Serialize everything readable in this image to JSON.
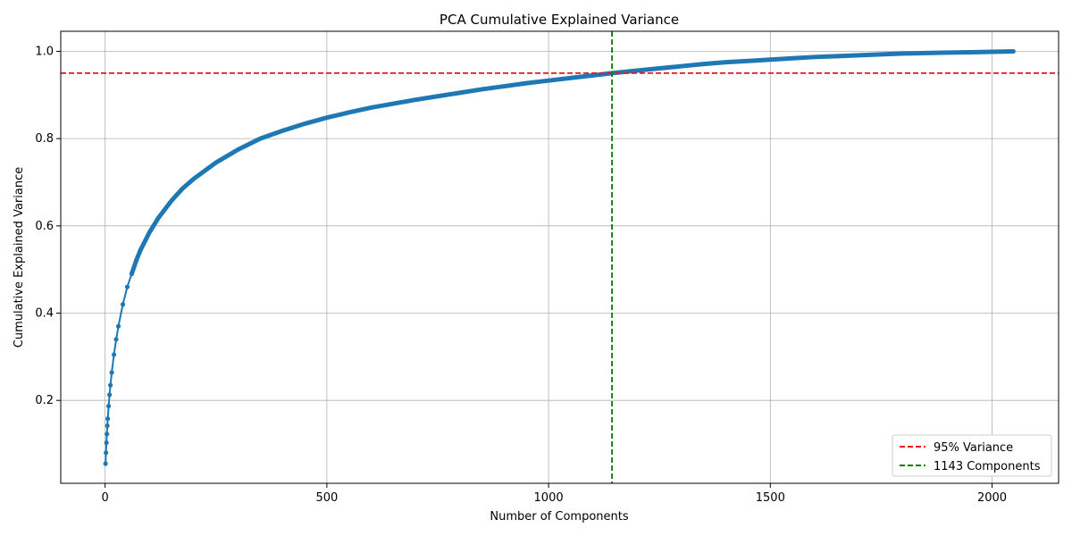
{
  "chart_data": {
    "type": "line",
    "title": "PCA Cumulative Explained Variance",
    "xlabel": "Number of Components",
    "ylabel": "Cumulative Explained Variance",
    "xlim": [
      -100,
      2150
    ],
    "ylim": [
      0.01,
      1.046
    ],
    "xticks": [
      0,
      500,
      1000,
      1500,
      2000
    ],
    "yticks": [
      0.2,
      0.4,
      0.6,
      0.8,
      1.0
    ],
    "xtick_labels": [
      "0",
      "500",
      "1000",
      "1500",
      "2000"
    ],
    "ytick_labels": [
      "0.2",
      "0.4",
      "0.6",
      "0.8",
      "1.0"
    ],
    "grid": true,
    "legend_position": "lower-right",
    "series": [
      {
        "color": "#1f77b4",
        "marker": "circle",
        "x": [
          1,
          2,
          3,
          4,
          5,
          6,
          8,
          10,
          12,
          15,
          20,
          25,
          30,
          40,
          50,
          60,
          70,
          80,
          100,
          120,
          150,
          175,
          200,
          250,
          300,
          350,
          400,
          450,
          500,
          550,
          600,
          650,
          700,
          750,
          800,
          850,
          900,
          950,
          1000,
          1050,
          1100,
          1143,
          1200,
          1250,
          1300,
          1350,
          1400,
          1450,
          1500,
          1550,
          1600,
          1650,
          1700,
          1750,
          1800,
          1850,
          1900,
          1950,
          2000,
          2048
        ],
        "y": [
          0.055,
          0.08,
          0.103,
          0.123,
          0.142,
          0.158,
          0.187,
          0.213,
          0.235,
          0.264,
          0.305,
          0.34,
          0.37,
          0.42,
          0.46,
          0.49,
          0.52,
          0.545,
          0.585,
          0.618,
          0.658,
          0.686,
          0.708,
          0.745,
          0.775,
          0.8,
          0.818,
          0.834,
          0.848,
          0.86,
          0.871,
          0.88,
          0.889,
          0.897,
          0.905,
          0.913,
          0.92,
          0.927,
          0.933,
          0.939,
          0.945,
          0.95,
          0.956,
          0.961,
          0.966,
          0.971,
          0.975,
          0.978,
          0.981,
          0.984,
          0.987,
          0.989,
          0.991,
          0.993,
          0.995,
          0.996,
          0.997,
          0.998,
          0.999,
          1.0
        ]
      }
    ],
    "reference_lines": [
      {
        "orientation": "horizontal",
        "value": 0.95,
        "color": "#e41a1a",
        "style": "dashed",
        "label": "95% Variance"
      },
      {
        "orientation": "vertical",
        "value": 1143,
        "color": "#008000",
        "style": "dashed",
        "label": "1143 Components"
      }
    ]
  }
}
